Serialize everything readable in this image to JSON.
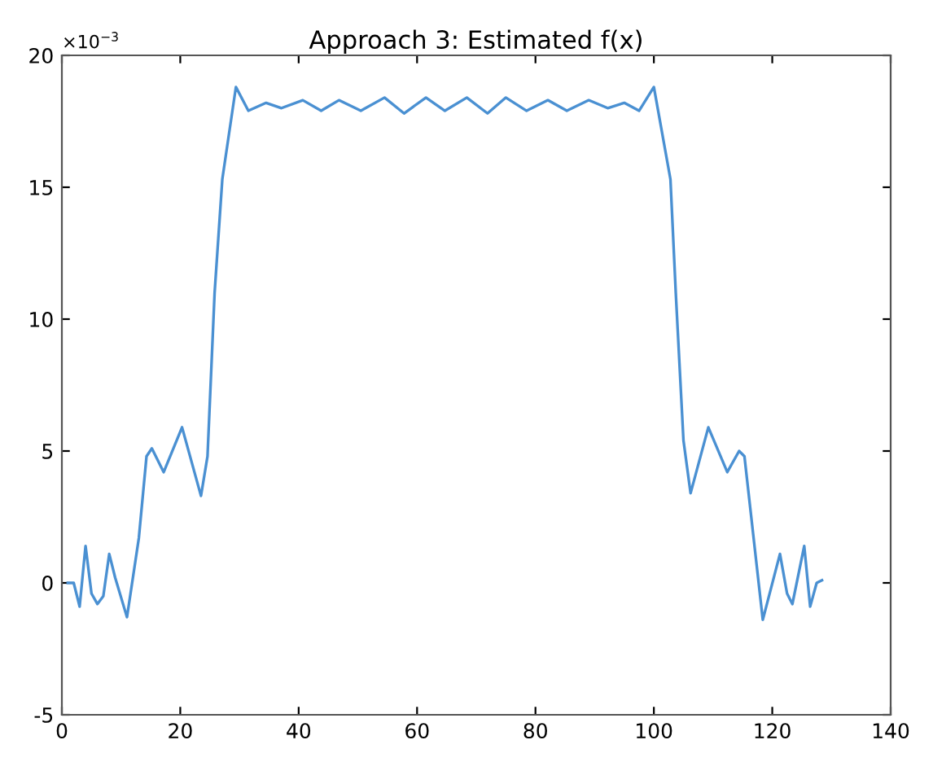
{
  "chart_data": {
    "type": "line",
    "title": "Approach 3: Estimated f(x)",
    "x": [
      1,
      2,
      3,
      4,
      5,
      6,
      7,
      8,
      9,
      11,
      13,
      14.3,
      15.2,
      17.2,
      20.3,
      23.5,
      24.6,
      25.8,
      27.1,
      29.4,
      31.5,
      34.5,
      37.1,
      40.7,
      43.8,
      46.8,
      50.5,
      54.5,
      57.8,
      61.5,
      64.7,
      68.4,
      71.9,
      75,
      78.5,
      82.1,
      85.3,
      89,
      92.2,
      95,
      97.5,
      100,
      102.8,
      103.7,
      105,
      106.2,
      109.2,
      112.4,
      114.4,
      115.3,
      118.4,
      121.3,
      122.5,
      123.4,
      125.4,
      126.4,
      127.5,
      128.4
    ],
    "series": [
      {
        "color": "#4a90d2",
        "values": [
          0,
          0,
          -0.9,
          1.4,
          -0.4,
          -0.8,
          -0.5,
          1.1,
          0.2,
          -1.3,
          1.7,
          4.8,
          5.1,
          4.2,
          5.9,
          3.3,
          4.8,
          11,
          15.3,
          18.8,
          17.9,
          18.2,
          18.0,
          18.3,
          17.9,
          18.3,
          17.9,
          18.4,
          17.8,
          18.4,
          17.9,
          18.4,
          17.8,
          18.4,
          17.9,
          18.3,
          17.9,
          18.3,
          18.0,
          18.2,
          17.9,
          18.8,
          15.3,
          11,
          5.4,
          3.4,
          5.9,
          4.2,
          5.0,
          4.8,
          -1.4,
          1.1,
          -0.4,
          -0.8,
          1.4,
          -0.9,
          0,
          0.1
        ]
      }
    ],
    "xlim": [
      0,
      140
    ],
    "xticks": [
      0,
      20,
      40,
      60,
      80,
      100,
      120,
      140
    ],
    "ylim": [
      -5,
      20
    ],
    "yticks": [
      -5,
      0,
      5,
      10,
      15,
      20
    ],
    "annotations": [
      "×10$^{−3}$"
    ],
    "grid": false
  }
}
